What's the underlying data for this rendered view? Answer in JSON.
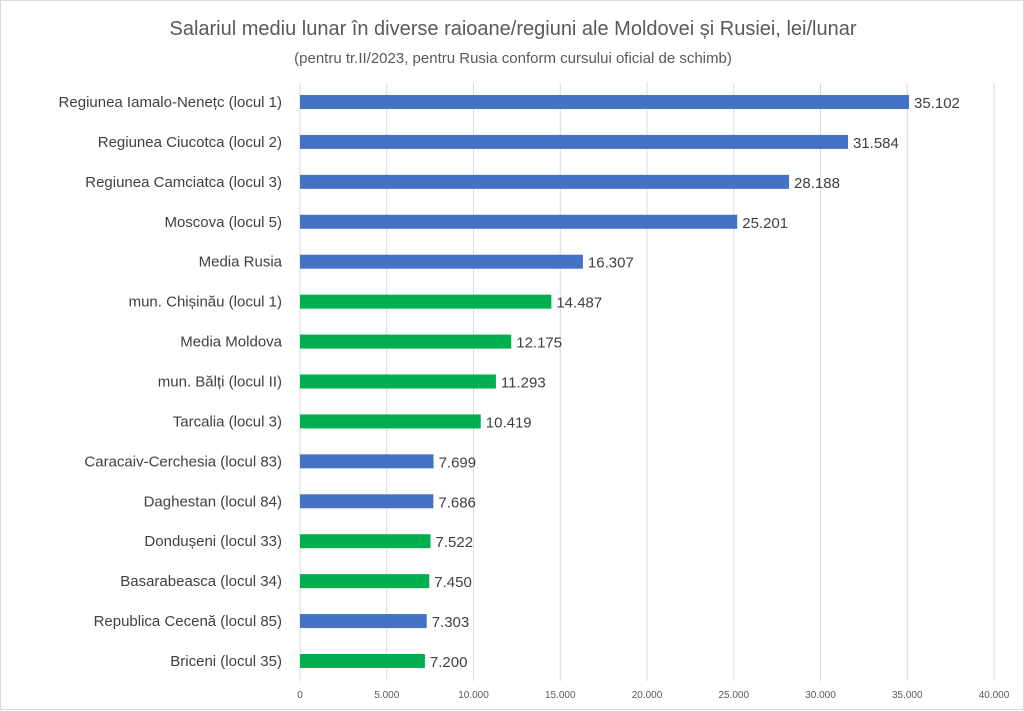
{
  "chart_data": {
    "type": "bar",
    "orientation": "horizontal",
    "title": "Salariul mediu lunar în diverse raioane/regiuni ale Moldovei și Rusiei, lei/lunar",
    "subtitle": "(pentru tr.II/2023, pentru Rusia conform cursului oficial de schimb)",
    "xlabel": "",
    "ylabel": "",
    "xlim": [
      0,
      40000
    ],
    "xticks": [
      0,
      5000,
      10000,
      15000,
      20000,
      25000,
      30000,
      35000,
      40000
    ],
    "xtick_labels": [
      "0",
      "5.000",
      "10.000",
      "15.000",
      "20.000",
      "25.000",
      "30.000",
      "35.000",
      "40.000"
    ],
    "grid": true,
    "legend": "none",
    "colors": {
      "Rusia": "#4472C4",
      "Moldova": "#00B050"
    },
    "categories": [
      "Regiunea Iamalo-Nenețc (locul 1)",
      "Regiunea Ciucotca (locul 2)",
      "Regiunea Camciatca (locul 3)",
      "Moscova (locul 5)",
      "Media Rusia",
      "mun. Chișinău (locul 1)",
      "Media Moldova",
      "mun. Bălți (locul II)",
      "Tarcalia (locul 3)",
      "Caracaiv-Cerchesia (locul 83)",
      "Daghestan (locul 84)",
      "Dondușeni  (locul 33)",
      "Basarabeasca (locul 34)",
      "Republica Cecenă (locul 85)",
      "Briceni (locul 35)"
    ],
    "values": [
      35102,
      31584,
      28188,
      25201,
      16307,
      14487,
      12175,
      11293,
      10419,
      7699,
      7686,
      7522,
      7450,
      7303,
      7200
    ],
    "value_labels": [
      "35.102",
      "31.584",
      "28.188",
      "25.201",
      "16.307",
      "14.487",
      "12.175",
      "11.293",
      "10.419",
      "7.699",
      "7.686",
      "7.522",
      "7.450",
      "7.303",
      "7.200"
    ],
    "groups": [
      "Rusia",
      "Rusia",
      "Rusia",
      "Rusia",
      "Rusia",
      "Moldova",
      "Moldova",
      "Moldova",
      "Moldova",
      "Rusia",
      "Rusia",
      "Moldova",
      "Moldova",
      "Rusia",
      "Moldova"
    ]
  }
}
